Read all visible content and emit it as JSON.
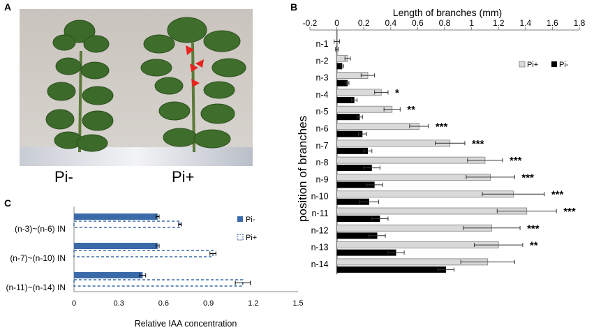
{
  "panels": {
    "a": "A",
    "b": "B",
    "c": "C"
  },
  "photo": {
    "left_label": "Pi-",
    "right_label": "Pi+"
  },
  "chart_data": [
    {
      "type": "bar",
      "orientation": "horizontal",
      "title": "Length of branches (mm)",
      "xlabel": "",
      "ylabel": "position  of branches",
      "xlim": [
        -0.2,
        1.8
      ],
      "xticks": [
        -0.2,
        0,
        0.2,
        0.4,
        0.6,
        0.8,
        1,
        1.2,
        1.4,
        1.6,
        1.8
      ],
      "xtick_labels": [
        "-0.2",
        "0",
        "0.2",
        "0.4",
        "0.6",
        "0.8",
        "1",
        "1.2",
        "1.4",
        "1.6",
        "1.8"
      ],
      "categories": [
        "n-1",
        "n-2",
        "n-3",
        "n-4",
        "n-5",
        "n-6",
        "n-7",
        "n-8",
        "n-9",
        "n-10",
        "n-11",
        "n-12",
        "n-13",
        "n-14"
      ],
      "series": [
        {
          "name": "Pi+",
          "color": "#d9d9d9",
          "values": [
            0.0,
            0.08,
            0.23,
            0.33,
            0.41,
            0.61,
            0.84,
            1.1,
            1.14,
            1.31,
            1.41,
            1.15,
            1.2,
            1.12
          ],
          "errors": [
            0.02,
            0.02,
            0.05,
            0.05,
            0.06,
            0.07,
            0.11,
            0.13,
            0.18,
            0.23,
            0.22,
            0.21,
            0.18,
            0.2
          ]
        },
        {
          "name": "Pi-",
          "color": "#000000",
          "values": [
            0.0,
            0.04,
            0.08,
            0.13,
            0.17,
            0.19,
            0.23,
            0.26,
            0.28,
            0.24,
            0.32,
            0.3,
            0.44,
            0.81
          ],
          "errors": [
            0.01,
            0.01,
            0.01,
            0.02,
            0.02,
            0.03,
            0.03,
            0.06,
            0.06,
            0.07,
            0.06,
            0.06,
            0.06,
            0.06
          ]
        }
      ],
      "annotations": [
        "",
        "",
        "",
        "*",
        "**",
        "***",
        "***",
        "***",
        "***",
        "***",
        "***",
        "***",
        "**",
        ""
      ],
      "legend_position": "top-right"
    },
    {
      "type": "bar",
      "orientation": "horizontal",
      "title": "",
      "xlabel": "Relative IAA concentration",
      "ylabel": "",
      "xlim": [
        0,
        1.5
      ],
      "xticks": [
        0,
        0.3,
        0.6,
        0.9,
        1.2,
        1.5
      ],
      "xtick_labels": [
        "0",
        "0.3",
        "0.6",
        "0.9",
        "1.2",
        "1.5"
      ],
      "categories": [
        "(n-3)~(n-6) IN",
        "(n-7)~(n-10) IN",
        "(n-11)~(n-14) IN"
      ],
      "series": [
        {
          "name": "Pi-",
          "color": "#3a6aa7",
          "values": [
            0.56,
            0.56,
            0.46
          ],
          "errors": [
            0.01,
            0.01,
            0.02
          ]
        },
        {
          "name": "Pi+",
          "color": "#3a6aa7",
          "style": "dashed-outline",
          "values": [
            0.71,
            0.93,
            1.13
          ],
          "errors": [
            0.01,
            0.02,
            0.05
          ]
        }
      ],
      "legend_position": "right"
    }
  ]
}
